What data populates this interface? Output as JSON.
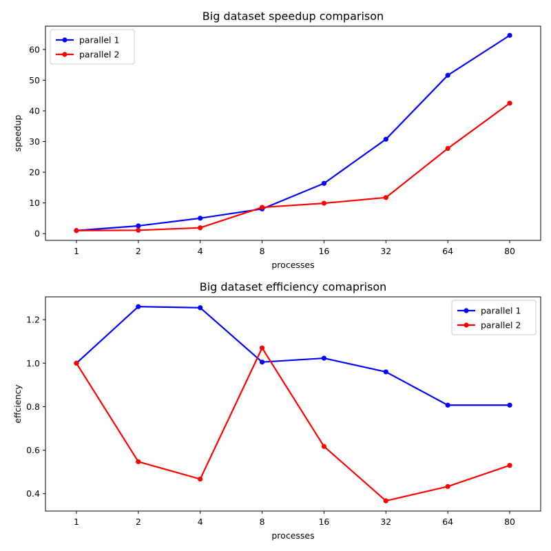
{
  "chart_data": [
    {
      "type": "line",
      "title": "Big dataset speedup comparison",
      "xlabel": "processes",
      "ylabel": "speedup",
      "categories": [
        "1",
        "2",
        "4",
        "8",
        "16",
        "32",
        "64",
        "80"
      ],
      "ylim": [
        -2.2,
        67.6
      ],
      "yticks": [
        0,
        10,
        20,
        30,
        40,
        50,
        60
      ],
      "legend_position": "upper-left",
      "grid": false,
      "series": [
        {
          "name": "parallel 1",
          "color": "#0000ff",
          "values": [
            1.0,
            2.52,
            5.02,
            8.05,
            16.38,
            30.75,
            51.6,
            64.6
          ]
        },
        {
          "name": "parallel 2",
          "color": "#ff0000",
          "values": [
            1.0,
            1.1,
            1.9,
            8.55,
            9.9,
            11.75,
            27.75,
            42.5
          ]
        }
      ]
    },
    {
      "type": "line",
      "title": "Big dataset efficiency comaprison",
      "xlabel": "processes",
      "ylabel": "effciency",
      "categories": [
        "1",
        "2",
        "4",
        "8",
        "16",
        "32",
        "64",
        "80"
      ],
      "ylim": [
        0.32,
        1.305
      ],
      "yticks": [
        0.4,
        0.6,
        0.8,
        1.0,
        1.2
      ],
      "legend_position": "upper-right",
      "grid": false,
      "series": [
        {
          "name": "parallel 1",
          "color": "#0000ff",
          "values": [
            1.0,
            1.26,
            1.255,
            1.005,
            1.023,
            0.96,
            0.807,
            0.807
          ]
        },
        {
          "name": "parallel 2",
          "color": "#ff0000",
          "values": [
            1.0,
            0.547,
            0.467,
            1.07,
            0.617,
            0.367,
            0.433,
            0.53
          ]
        }
      ]
    }
  ]
}
